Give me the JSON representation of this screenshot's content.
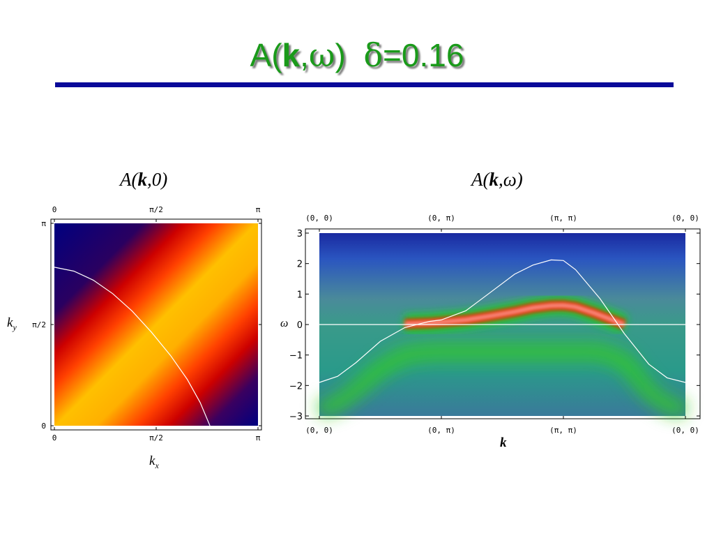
{
  "slide": {
    "title_prefix": "A(",
    "title_k": "k",
    "title_sep": ",",
    "title_omega": "ω",
    "title_close": ")",
    "title_delta": "δ",
    "title_value": "=0.16"
  },
  "chart_data": [
    {
      "type": "heatmap",
      "title_prefix": "A(",
      "title_k": "k",
      "title_suffix": ",0)",
      "xlabel_base": "k",
      "xlabel_sub": "x",
      "ylabel_base": "k",
      "ylabel_sub": "y",
      "x_ticks": [
        "0",
        "π/2",
        "π"
      ],
      "y_ticks": [
        "0",
        "π/2",
        "π"
      ],
      "xlim": [
        0,
        3.1416
      ],
      "ylim": [
        0,
        3.1416
      ],
      "colormap": [
        "#000080",
        "#cc0000",
        "#ff4000",
        "#ffc000",
        "#ffe000"
      ],
      "contour_line": {
        "color": "#ffffff",
        "x": [
          0.0,
          0.3,
          0.6,
          0.9,
          1.2,
          1.5,
          1.8,
          2.05,
          2.25,
          2.4
        ],
        "y": [
          2.46,
          2.4,
          2.26,
          2.05,
          1.78,
          1.45,
          1.08,
          0.72,
          0.36,
          0.0
        ]
      }
    },
    {
      "type": "heatmap",
      "title_prefix": "A(",
      "title_k": "k",
      "title_suffix": ",ω)",
      "xlabel": "k",
      "ylabel": "ω",
      "x_ticks_top": [
        "(0, 0)",
        "(0, π)",
        "(π, π)",
        "(0, 0)"
      ],
      "x_ticks_bottom": [
        "(0, 0)",
        "(0, π)",
        "(π, π)",
        "(0, 0)"
      ],
      "x_tick_positions": [
        0,
        1,
        2,
        3
      ],
      "y_ticks": [
        "3",
        "2",
        "1",
        "0",
        "−1",
        "−2",
        "−3"
      ],
      "y_tick_values": [
        3,
        2,
        1,
        0,
        -1,
        -2,
        -3
      ],
      "xlim": [
        0,
        3
      ],
      "ylim": [
        -3,
        3
      ],
      "fermi_level": 0,
      "dispersion_line": {
        "color": "#ffffff",
        "x": [
          0.0,
          0.15,
          0.3,
          0.5,
          0.7,
          0.9,
          1.0,
          1.2,
          1.4,
          1.6,
          1.75,
          1.9,
          2.0,
          2.1,
          2.3,
          2.5,
          2.7,
          2.85,
          3.0
        ],
        "y": [
          -1.9,
          -1.7,
          -1.25,
          -0.55,
          -0.1,
          0.1,
          0.15,
          0.45,
          1.05,
          1.65,
          1.95,
          2.12,
          2.1,
          1.8,
          0.85,
          -0.3,
          -1.3,
          -1.75,
          -1.9
        ]
      },
      "quasiparticle_band": {
        "x": [
          0.7,
          0.9,
          1.0,
          1.2,
          1.4,
          1.6,
          1.75,
          1.9,
          2.0,
          2.1,
          2.25,
          2.4,
          2.5
        ],
        "y": [
          0.02,
          0.05,
          0.08,
          0.15,
          0.28,
          0.42,
          0.55,
          0.62,
          0.63,
          0.58,
          0.38,
          0.15,
          0.0
        ]
      }
    }
  ]
}
